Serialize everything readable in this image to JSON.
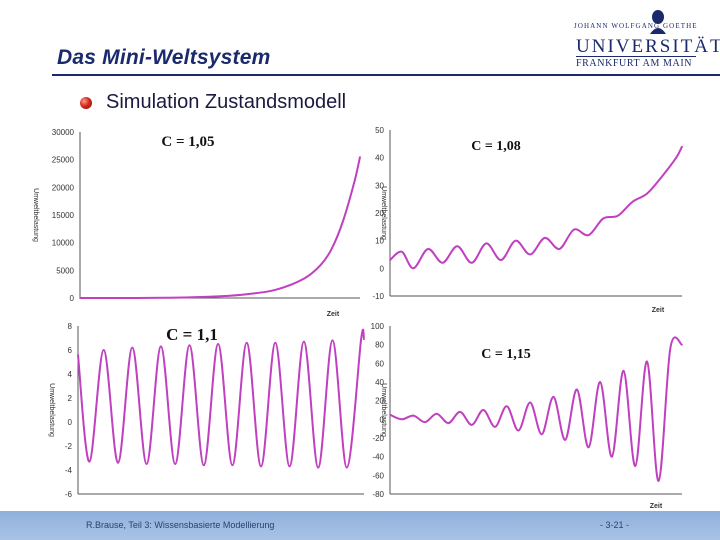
{
  "header": {
    "title": "Das Mini-Weltsystem",
    "logo": {
      "top": "JOHANN WOLFGANG GOETHE",
      "main": "UNIVERSITÄT",
      "sub": "FRANKFURT AM MAIN"
    }
  },
  "slide": {
    "bullet_text": "Simulation Zustandsmodell"
  },
  "footer": {
    "left": "R.Brause, Teil 3: Wissensbasierte Modellierung",
    "right": "- 3-21 -"
  },
  "colors": {
    "curve": "#c040c0",
    "title": "#1a2a6c",
    "footer_bg": "#a9c3e6"
  },
  "chart_data": [
    {
      "type": "line",
      "title": "C = 1,05",
      "xlabel": "Zeit",
      "ylabel": "Umweltbelastung",
      "yticks": [
        "30000",
        "25000",
        "20000",
        "15000",
        "10000",
        "5000",
        "0"
      ],
      "ylim": [
        0,
        30000
      ],
      "x": [
        0,
        10,
        20,
        30,
        40,
        50,
        60,
        70,
        80,
        86,
        90,
        94,
        98,
        100
      ],
      "y": [
        0,
        0,
        0,
        30,
        120,
        300,
        700,
        1500,
        3500,
        6000,
        9000,
        14000,
        21000,
        25500
      ]
    },
    {
      "type": "line",
      "title": "C = 1,08",
      "xlabel": "Zeit",
      "ylabel": "Umweltbelastung",
      "yticks": [
        "50",
        "40",
        "30",
        "20",
        "10",
        "0",
        "-10"
      ],
      "ylim": [
        -10,
        50
      ],
      "x": [
        0,
        4,
        8,
        13,
        18,
        23,
        28,
        33,
        38,
        43,
        48,
        53,
        58,
        63,
        68,
        73,
        78,
        83,
        88,
        93,
        98,
        100
      ],
      "y": [
        3,
        6,
        0,
        7,
        2,
        8,
        2,
        9,
        3,
        10,
        5,
        11,
        7,
        14,
        12,
        18,
        19,
        24,
        27,
        33,
        40,
        44
      ]
    },
    {
      "type": "line",
      "title": "C = 1,1",
      "xlabel": "",
      "ylabel": "Umweltbelastung",
      "yticks": [
        "8",
        "6",
        "4",
        "2",
        "0",
        "-2",
        "-4",
        "-6"
      ],
      "ylim": [
        -6,
        8
      ],
      "x": [
        0,
        4,
        9,
        14,
        19,
        24,
        29,
        34,
        39,
        44,
        49,
        54,
        59,
        64,
        69,
        74,
        79,
        84,
        89,
        94,
        99,
        100
      ],
      "y": [
        5.6,
        -3.3,
        6.0,
        -3.4,
        6.2,
        -3.5,
        6.3,
        -3.5,
        6.4,
        -3.6,
        6.5,
        -3.6,
        6.6,
        -3.7,
        6.6,
        -3.7,
        6.7,
        -3.8,
        6.8,
        -3.8,
        6.9,
        6.9
      ]
    },
    {
      "type": "line",
      "title": "C = 1,15",
      "xlabel": "Zeit",
      "ylabel": "Umweltbelastung",
      "yticks": [
        "100",
        "80",
        "60",
        "40",
        "20",
        "0",
        "-20",
        "-40",
        "-60",
        "-80"
      ],
      "ylim": [
        -80,
        100
      ],
      "x": [
        0,
        4,
        8,
        12,
        16,
        20,
        24,
        28,
        32,
        36,
        40,
        44,
        48,
        52,
        56,
        60,
        64,
        68,
        72,
        76,
        80,
        84,
        88,
        92,
        96,
        100
      ],
      "y": [
        5,
        0,
        4,
        -3,
        6,
        -4,
        8,
        -6,
        10,
        -8,
        14,
        -12,
        18,
        -16,
        24,
        -22,
        32,
        -30,
        40,
        -40,
        52,
        -50,
        62,
        -66,
        76,
        80
      ]
    }
  ]
}
